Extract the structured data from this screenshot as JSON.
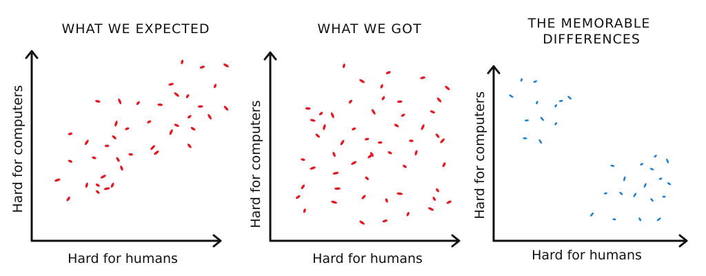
{
  "colors": {
    "expected": "#e01b24",
    "got": "#e01b24",
    "differences": "#1f7fcc",
    "ink": "#111111"
  },
  "chart_data": [
    {
      "type": "scatter",
      "title": "WHAT WE EXPECTED",
      "xlabel": "Hard for humans",
      "ylabel": "Hard for computers",
      "xlim": [
        0,
        100
      ],
      "ylim": [
        0,
        100
      ],
      "grid": false,
      "series": [
        {
          "color": "#e01b24",
          "points": [
            [
              76,
              92
            ],
            [
              87,
              89
            ],
            [
              100,
              90
            ],
            [
              94,
              78
            ],
            [
              70,
              79
            ],
            [
              73,
              73
            ],
            [
              79,
              72
            ],
            [
              86,
              66
            ],
            [
              100,
              65
            ],
            [
              52,
              68
            ],
            [
              64,
              67
            ],
            [
              91,
              60
            ],
            [
              80,
              60
            ],
            [
              30,
              69
            ],
            [
              42,
              69
            ],
            [
              58,
              57
            ],
            [
              73,
              55
            ],
            [
              40,
              56
            ],
            [
              46,
              53
            ],
            [
              82,
              53
            ],
            [
              70,
              51
            ],
            [
              15,
              50
            ],
            [
              39,
              48
            ],
            [
              24,
              45
            ],
            [
              35,
              43
            ],
            [
              80,
              43
            ],
            [
              60,
              42
            ],
            [
              48,
              38
            ],
            [
              41,
              35
            ],
            [
              62,
              39
            ],
            [
              28,
              36
            ],
            [
              43,
              30
            ],
            [
              33,
              25
            ],
            [
              15,
              34
            ],
            [
              24,
              20
            ],
            [
              8,
              23
            ],
            [
              30,
              20
            ],
            [
              38,
              20
            ],
            [
              35,
              18
            ],
            [
              30,
              16
            ],
            [
              14,
              12
            ]
          ]
        }
      ]
    },
    {
      "type": "scatter",
      "title": "WHAT WE GOT",
      "xlabel": "Hard for humans",
      "ylabel": "Hard for computers",
      "xlim": [
        0,
        100
      ],
      "ylim": [
        0,
        100
      ],
      "grid": false,
      "series": [
        {
          "color": "#e01b24",
          "points": [
            [
              34,
              97
            ],
            [
              61,
              93
            ],
            [
              45,
              88
            ],
            [
              57,
              85
            ],
            [
              82,
              90
            ],
            [
              97,
              84
            ],
            [
              58,
              78
            ],
            [
              68,
              76
            ],
            [
              92,
              77
            ],
            [
              38,
              76
            ],
            [
              12,
              72
            ],
            [
              52,
              70
            ],
            [
              20,
              69
            ],
            [
              15,
              65
            ],
            [
              27,
              68
            ],
            [
              70,
              68
            ],
            [
              88,
              70
            ],
            [
              22,
              61
            ],
            [
              40,
              60
            ],
            [
              66,
              62
            ],
            [
              82,
              61
            ],
            [
              48,
              54
            ],
            [
              18,
              56
            ],
            [
              33,
              52
            ],
            [
              56,
              52
            ],
            [
              91,
              56
            ],
            [
              94,
              53
            ],
            [
              75,
              53
            ],
            [
              51,
              45
            ],
            [
              50,
              44
            ],
            [
              9,
              42
            ],
            [
              28,
              45
            ],
            [
              40,
              40
            ],
            [
              62,
              46
            ],
            [
              78,
              46
            ],
            [
              15,
              37
            ],
            [
              71,
              38
            ],
            [
              95,
              39
            ],
            [
              29,
              34
            ],
            [
              48,
              31
            ],
            [
              9,
              26
            ],
            [
              30,
              25
            ],
            [
              91,
              24
            ],
            [
              46,
              20
            ],
            [
              68,
              22
            ],
            [
              89,
              19
            ],
            [
              6,
              20
            ],
            [
              28,
              17
            ],
            [
              60,
              18
            ],
            [
              98,
              17
            ],
            [
              87,
              13
            ],
            [
              10,
              12
            ],
            [
              59,
              6
            ],
            [
              45,
              5
            ],
            [
              73,
              10
            ]
          ]
        }
      ]
    },
    {
      "type": "scatter",
      "title": "THE MEMORABLE DIFFERENCES",
      "xlabel": "Hard for humans",
      "ylabel": "Hard for computers",
      "xlim": [
        0,
        100
      ],
      "ylim": [
        0,
        100
      ],
      "grid": false,
      "series": [
        {
          "color": "#1f7fcc",
          "points": [
            [
              9,
              92
            ],
            [
              17,
              91
            ],
            [
              3,
              82
            ],
            [
              18,
              78
            ],
            [
              32,
              79
            ],
            [
              37,
              81
            ],
            [
              29,
              76
            ],
            [
              12,
              67
            ],
            [
              21,
              68
            ],
            [
              29,
              65
            ],
            [
              11,
              56
            ],
            [
              20,
              54
            ],
            [
              87,
              45
            ],
            [
              62,
              39
            ],
            [
              94,
              42
            ],
            [
              79,
              40
            ],
            [
              85,
              37
            ],
            [
              69,
              31
            ],
            [
              90,
              31
            ],
            [
              95,
              28
            ],
            [
              81,
              27
            ],
            [
              58,
              22
            ],
            [
              67,
              22
            ],
            [
              75,
              21
            ],
            [
              92,
              20
            ],
            [
              85,
              18
            ],
            [
              50,
              9
            ],
            [
              63,
              6
            ],
            [
              78,
              6
            ],
            [
              89,
              6
            ]
          ]
        }
      ]
    }
  ]
}
